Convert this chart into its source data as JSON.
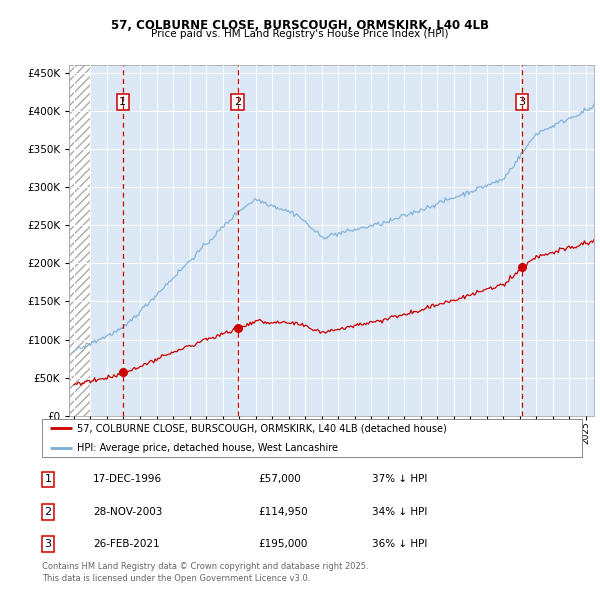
{
  "title1": "57, COLBURNE CLOSE, BURSCOUGH, ORMSKIRK, L40 4LB",
  "title2": "Price paid vs. HM Land Registry's House Price Index (HPI)",
  "legend_line1": "57, COLBURNE CLOSE, BURSCOUGH, ORMSKIRK, L40 4LB (detached house)",
  "legend_line2": "HPI: Average price, detached house, West Lancashire",
  "sale_years": [
    1996.96,
    2003.91,
    2021.15
  ],
  "sale_prices": [
    57000,
    114950,
    195000
  ],
  "table_labels": [
    "1",
    "2",
    "3"
  ],
  "table_dates": [
    "17-DEC-1996",
    "28-NOV-2003",
    "26-FEB-2021"
  ],
  "table_prices": [
    "£57,000",
    "£114,950",
    "£195,000"
  ],
  "table_hpi": [
    "37% ↓ HPI",
    "34% ↓ HPI",
    "36% ↓ HPI"
  ],
  "ylim": [
    0,
    460000
  ],
  "xlim_start": 1993.7,
  "xlim_end": 2025.5,
  "hatch_end": 1995.0,
  "red_color": "#cc0000",
  "blue_color": "#7aaed6",
  "bg_color": "#dce8f5",
  "footer": "Contains HM Land Registry data © Crown copyright and database right 2025.\nThis data is licensed under the Open Government Licence v3.0."
}
